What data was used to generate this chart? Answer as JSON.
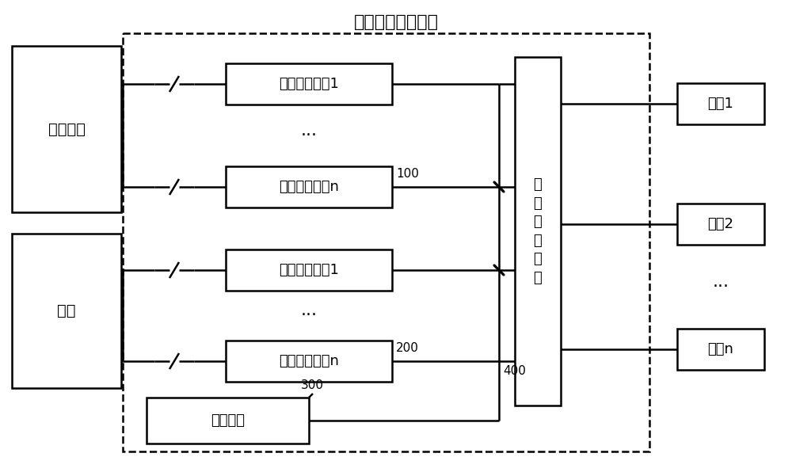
{
  "title": "群充直流充电系统",
  "title_fontsize": 16,
  "bg_color": "#ffffff",
  "line_color": "#000000",
  "font_color": "#000000",
  "lw": 1.8,
  "fig_w": 10.0,
  "fig_h": 6.01,
  "dpi": 100,
  "note_100": "100",
  "note_200": "200",
  "note_300": "300",
  "note_400": "400",
  "dots": "···"
}
